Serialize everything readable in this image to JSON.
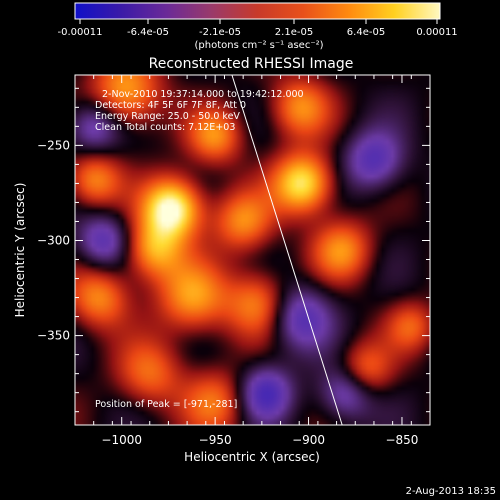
{
  "colorbar": {
    "tick_labels": [
      "-0.00011",
      "-6.4e-05",
      "-2.1e-05",
      "2.1e-05",
      "6.4e-05",
      "0.00011"
    ],
    "unit_label": "(photons cm⁻² s⁻¹ asec⁻²)",
    "gradient_colors": [
      "#1010c8",
      "#3a1aa8",
      "#6a2a98",
      "#9a3a6a",
      "#c83a2a",
      "#e8501a",
      "#ff8a10",
      "#ffd020",
      "#fff8c0"
    ]
  },
  "footer": {
    "timestamp": "2-Aug-2013 18:35"
  },
  "chart_data": {
    "type": "heatmap",
    "title": "Reconstructed RHESSI Image",
    "xlabel": "Heliocentric X (arcsec)",
    "ylabel": "Heliocentric Y (arcsec)",
    "xlim": [
      -1025,
      -835
    ],
    "ylim": [
      -397,
      -213
    ],
    "xticks": [
      -1000,
      -950,
      -900,
      -850
    ],
    "yticks": [
      -250,
      -300,
      -350
    ],
    "xtick_labels": [
      "−1000",
      "−950",
      "−900",
      "−850"
    ],
    "ytick_labels": [
      "−250",
      "−300",
      "−350"
    ],
    "annotations": [
      "2-Nov-2010 19:37:14.000 to 19:42:12.000",
      "Detectors: 4F 5F 6F 7F 8F, Att 0",
      "Energy Range: 25.0 - 50.0 keV",
      "Clean    Total counts: 7.12E+03"
    ],
    "peak_label": "Position of Peak = [-971,-281]",
    "peak_position": [
      -971,
      -281
    ],
    "limb_line": [
      [
        -941,
        -213
      ],
      [
        -882,
        -397
      ]
    ],
    "sources": [
      {
        "x": -973,
        "y": -283,
        "amp": 1.05,
        "sigma": 11
      },
      {
        "x": -983,
        "y": -305,
        "amp": 0.65,
        "sigma": 11
      },
      {
        "x": -962,
        "y": -330,
        "amp": 0.6,
        "sigma": 13
      },
      {
        "x": -998,
        "y": -222,
        "amp": 0.65,
        "sigma": 13
      },
      {
        "x": -1015,
        "y": -268,
        "amp": 0.55,
        "sigma": 10
      },
      {
        "x": -1012,
        "y": -330,
        "amp": 0.55,
        "sigma": 11
      },
      {
        "x": -985,
        "y": -370,
        "amp": 0.45,
        "sigma": 12
      },
      {
        "x": -950,
        "y": -245,
        "amp": 0.55,
        "sigma": 10
      },
      {
        "x": -935,
        "y": -290,
        "amp": 0.55,
        "sigma": 11
      },
      {
        "x": -903,
        "y": -270,
        "amp": 0.9,
        "sigma": 11
      },
      {
        "x": -905,
        "y": -230,
        "amp": 0.55,
        "sigma": 11
      },
      {
        "x": -927,
        "y": -333,
        "amp": 0.55,
        "sigma": 12
      },
      {
        "x": -882,
        "y": -305,
        "amp": 0.55,
        "sigma": 11
      },
      {
        "x": -870,
        "y": -368,
        "amp": 0.45,
        "sigma": 10
      },
      {
        "x": -845,
        "y": -345,
        "amp": 0.4,
        "sigma": 9
      },
      {
        "x": -950,
        "y": -385,
        "amp": 0.45,
        "sigma": 12
      },
      {
        "x": -905,
        "y": -340,
        "amp": -0.55,
        "sigma": 12
      },
      {
        "x": -923,
        "y": -380,
        "amp": -0.6,
        "sigma": 10
      },
      {
        "x": -865,
        "y": -258,
        "amp": -0.55,
        "sigma": 11
      },
      {
        "x": -880,
        "y": -380,
        "amp": -0.5,
        "sigma": 10
      },
      {
        "x": -1010,
        "y": -300,
        "amp": -0.5,
        "sigma": 10
      },
      {
        "x": -1015,
        "y": -240,
        "amp": -0.5,
        "sigma": 10
      }
    ]
  }
}
